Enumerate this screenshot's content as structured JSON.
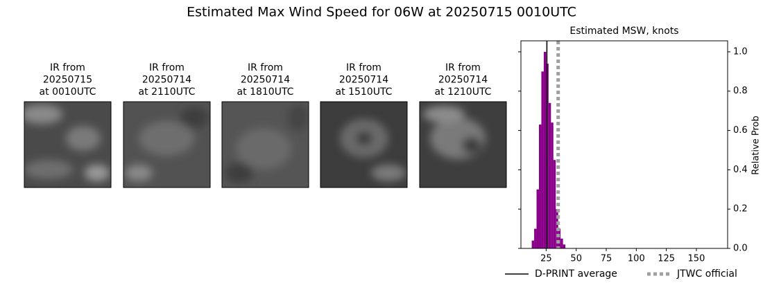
{
  "title": "Estimated Max Wind Speed for 06W at 20250715 0010UTC",
  "panels": [
    {
      "caption": [
        "IR from",
        "20250715",
        "at 0010UTC"
      ]
    },
    {
      "caption": [
        "IR from",
        "20250714",
        "at 2110UTC"
      ]
    },
    {
      "caption": [
        "IR from",
        "20250714",
        "at 1810UTC"
      ]
    },
    {
      "caption": [
        "IR from",
        "20250714",
        "at 1510UTC"
      ]
    },
    {
      "caption": [
        "IR from",
        "20250714",
        "at 1210UTC"
      ]
    }
  ],
  "chart_data": {
    "type": "histogram",
    "title": "Estimated MSW, knots",
    "y_label": "Relative Prob",
    "bins": [
      13,
      15,
      17,
      19,
      21,
      23,
      25,
      27,
      29,
      31,
      33,
      35,
      37,
      39,
      41
    ],
    "values": [
      0.04,
      0.1,
      0.3,
      0.63,
      0.9,
      1.0,
      0.94,
      0.74,
      0.64,
      0.45,
      0.2,
      0.1,
      0.05,
      0.02
    ],
    "color": "#8b008b",
    "xlim": [
      4,
      176
    ],
    "xticks": [
      25,
      50,
      75,
      100,
      125,
      150
    ],
    "ylim": [
      0,
      1.056
    ],
    "yticks": [
      {
        "value": 0,
        "label": "0.0"
      },
      {
        "value": 0.2,
        "label": "0.2"
      },
      {
        "value": 0.4,
        "label": "0.4"
      },
      {
        "value": 0.6,
        "label": "0.6"
      },
      {
        "value": 0.8,
        "label": "0.8"
      },
      {
        "value": 1.0,
        "label": "1.0"
      }
    ],
    "lines": [
      {
        "name": "D-PRINT average",
        "value": 25.6,
        "color": "#000000",
        "style": "solid"
      },
      {
        "name": "JTWC official",
        "value": 35,
        "color": "#a0a0a0",
        "style": "dotted"
      }
    ]
  }
}
